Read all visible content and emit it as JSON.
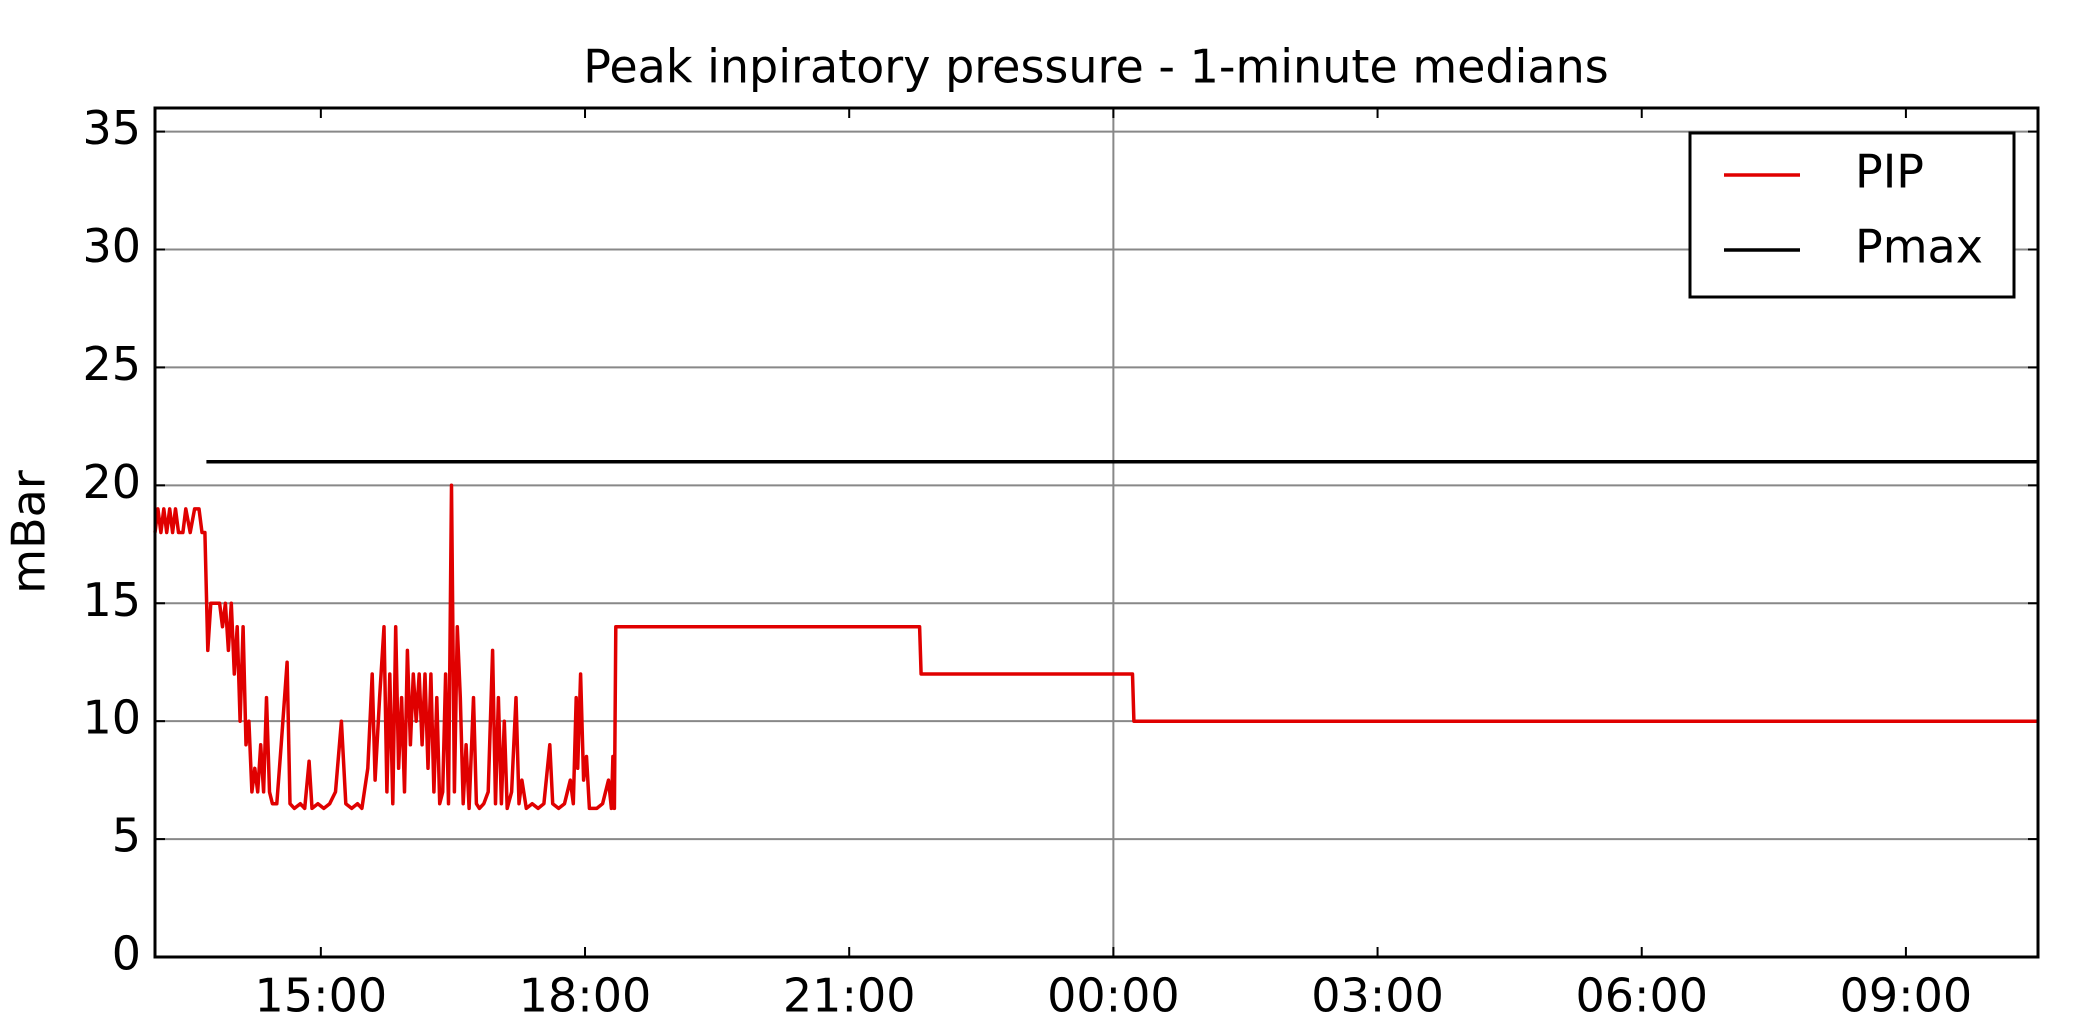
{
  "chart_data": {
    "type": "line",
    "title": "Peak inpiratory pressure -  1-minute medians",
    "ylabel": "mBar",
    "xlim": [
      "13:07",
      "10:30"
    ],
    "xticks": [
      "15:00",
      "18:00",
      "21:00",
      "00:00",
      "03:00",
      "06:00",
      "09:00"
    ],
    "vlines": [
      "00:00"
    ],
    "ylim": [
      0,
      36
    ],
    "yticks": [
      0,
      5,
      10,
      15,
      20,
      25,
      30,
      35
    ],
    "grid": true,
    "legend": "upper right",
    "series": [
      {
        "name": "PIP",
        "color": "#e00000",
        "x": [
          "13:07",
          "13:09",
          "13:11",
          "13:13",
          "13:15",
          "13:17",
          "13:19",
          "13:21",
          "13:23",
          "13:26",
          "13:28",
          "13:31",
          "13:34",
          "13:37",
          "13:39",
          "13:41",
          "13:43",
          "13:45",
          "13:48",
          "13:51",
          "13:53",
          "13:55",
          "13:57",
          "13:59",
          "14:01",
          "14:03",
          "14:05",
          "14:07",
          "14:09",
          "14:11",
          "14:13",
          "14:15",
          "14:17",
          "14:19",
          "14:21",
          "14:23",
          "14:25",
          "14:27",
          "14:30",
          "14:33",
          "14:37",
          "14:39",
          "14:42",
          "14:46",
          "14:49",
          "14:52",
          "14:54",
          "14:58",
          "15:02",
          "15:06",
          "15:10",
          "15:14",
          "15:17",
          "15:21",
          "15:25",
          "15:28",
          "15:32",
          "15:35",
          "15:37",
          "15:40",
          "15:43",
          "15:45",
          "15:47",
          "15:49",
          "15:51",
          "15:53",
          "15:55",
          "15:57",
          "15:59",
          "16:01",
          "16:03",
          "16:05",
          "16:07",
          "16:09",
          "16:11",
          "16:13",
          "16:15",
          "16:17",
          "16:19",
          "16:21",
          "16:23",
          "16:25",
          "16:27",
          "16:29",
          "16:31",
          "16:33",
          "16:35",
          "16:37",
          "16:39",
          "16:41",
          "16:44",
          "16:46",
          "16:48",
          "16:51",
          "16:54",
          "16:57",
          "16:59",
          "17:01",
          "17:03",
          "17:05",
          "17:07",
          "17:10",
          "17:13",
          "17:15",
          "17:17",
          "17:20",
          "17:24",
          "17:28",
          "17:32",
          "17:36",
          "17:38",
          "17:42",
          "17:46",
          "17:50",
          "17:52",
          "17:54",
          "17:55",
          "17:57",
          "17:59",
          "18:01",
          "18:03",
          "18:08",
          "18:12",
          "18:16",
          "18:18",
          "18:19",
          "18:20",
          "18:21",
          "21:48",
          "21:49",
          "00:13",
          "00:14",
          "10:30"
        ],
        "values": [
          18,
          19,
          18,
          19,
          18,
          19,
          18,
          19,
          18,
          18,
          19,
          18,
          19,
          19,
          18,
          18,
          13,
          15,
          15,
          15,
          14,
          15,
          13,
          15,
          12,
          14,
          10,
          14,
          9,
          10,
          7,
          8,
          7,
          9,
          7,
          11,
          7,
          6.5,
          6.5,
          9,
          12.5,
          6.5,
          6.3,
          6.5,
          6.3,
          8.3,
          6.3,
          6.5,
          6.3,
          6.5,
          7,
          10,
          6.5,
          6.3,
          6.5,
          6.3,
          8,
          12,
          7.5,
          11,
          14,
          7,
          12,
          6.5,
          14,
          8,
          11,
          7,
          13,
          9,
          12,
          10,
          12,
          9,
          12,
          8,
          12,
          7,
          11,
          6.5,
          7,
          12,
          6.5,
          20,
          7,
          14,
          11,
          6.5,
          9,
          6.3,
          11,
          6.5,
          6.3,
          6.5,
          7,
          13,
          6.5,
          11,
          6.5,
          10,
          6.3,
          7,
          11,
          6.5,
          7.5,
          6.3,
          6.5,
          6.3,
          6.5,
          9,
          6.5,
          6.3,
          6.5,
          7.5,
          6.5,
          11,
          8,
          12,
          7.5,
          8.5,
          6.3,
          6.3,
          6.5,
          7.5,
          6.3,
          8.5,
          6.3,
          14,
          14,
          12,
          12,
          10,
          10
        ]
      },
      {
        "name": "Pmax",
        "color": "#000000",
        "x": [
          "13:42",
          "10:30"
        ],
        "values": [
          21,
          21
        ]
      }
    ]
  }
}
